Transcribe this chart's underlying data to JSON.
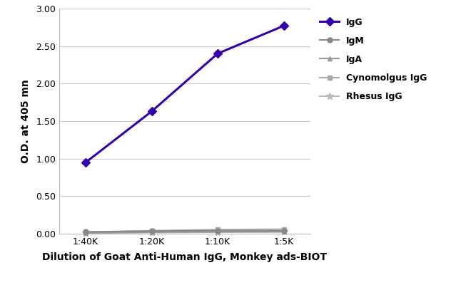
{
  "x_labels": [
    "1:40K",
    "1:20K",
    "1:10K",
    "1:5K"
  ],
  "x_values": [
    1,
    2,
    3,
    4
  ],
  "series": [
    {
      "label": "IgG",
      "y": [
        0.95,
        1.63,
        2.4,
        2.77
      ],
      "color": "#3300aa",
      "marker": "D",
      "marker_color": "#3300aa",
      "linewidth": 2.2,
      "markersize": 6,
      "zorder": 5
    },
    {
      "label": "IgM",
      "y": [
        0.025,
        0.035,
        0.04,
        0.04
      ],
      "color": "#888888",
      "marker": "o",
      "marker_color": "#888888",
      "linewidth": 1.5,
      "markersize": 5,
      "zorder": 4
    },
    {
      "label": "IgA",
      "y": [
        0.01,
        0.02,
        0.025,
        0.025
      ],
      "color": "#999999",
      "marker": "^",
      "marker_color": "#999999",
      "linewidth": 1.5,
      "markersize": 5,
      "zorder": 3
    },
    {
      "label": "Cynomolgus IgG",
      "y": [
        0.02,
        0.04,
        0.055,
        0.06
      ],
      "color": "#aaaaaa",
      "marker": "s",
      "marker_color": "#aaaaaa",
      "linewidth": 1.5,
      "markersize": 5,
      "zorder": 2
    },
    {
      "label": "Rhesus IgG",
      "y": [
        0.01,
        0.015,
        0.02,
        0.025
      ],
      "color": "#bbbbbb",
      "marker": "*",
      "marker_color": "#bbbbbb",
      "linewidth": 1.5,
      "markersize": 7,
      "zorder": 1
    }
  ],
  "xlabel": "Dilution of Goat Anti-Human IgG, Monkey ads-BIOT",
  "ylabel": "O.D. at 405 mn",
  "ylim": [
    0.0,
    3.0
  ],
  "yticks": [
    0.0,
    0.5,
    1.0,
    1.5,
    2.0,
    2.5,
    3.0
  ],
  "background_color": "#ffffff",
  "grid_color": "#cccccc"
}
